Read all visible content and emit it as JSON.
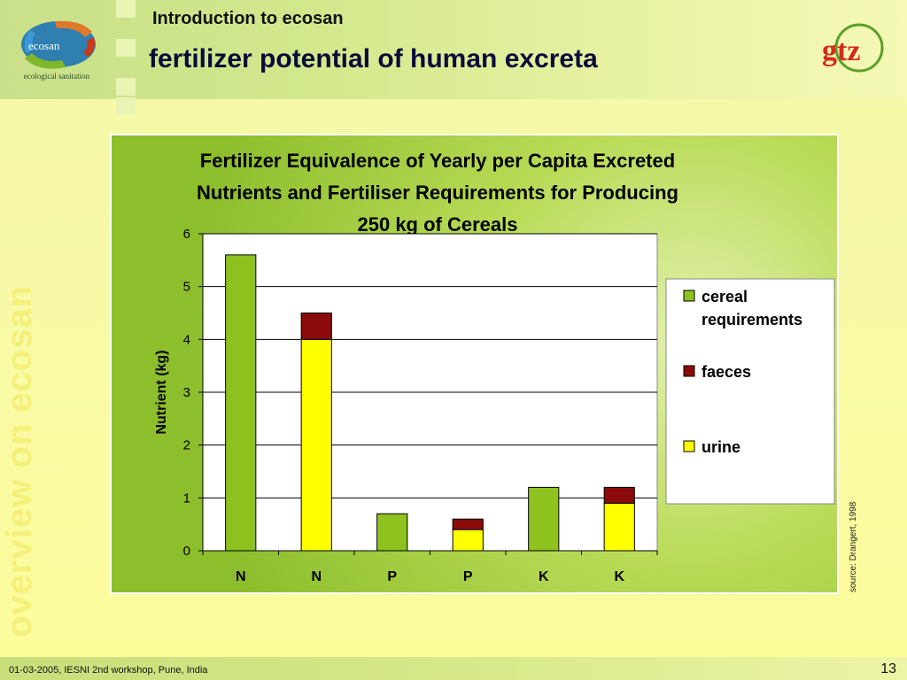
{
  "header": {
    "subtitle": "Introduction to ecosan",
    "title": "fertilizer potential of human excreta",
    "logo_word": "ecosan",
    "logo_caption": "ecological sanitation",
    "brand_logo": "gtz"
  },
  "sidebar": {
    "vertical_text": "overview on ecosan"
  },
  "source": "source: Drangert, 1998",
  "footer": {
    "text": "01-03-2005, IESNI 2nd workshop, Pune, India",
    "page": "13"
  },
  "colors": {
    "cereal": "#8dc21f",
    "faeces": "#8b0a0a",
    "urine": "#ffff00",
    "title_color": "#0a0a3a"
  },
  "chart_data": {
    "type": "bar",
    "stacked": true,
    "title_lines": [
      "Fertilizer Equivalence of Yearly per Capita Excreted",
      "Nutrients and Fertiliser Requirements for Producing",
      "250 kg of Cereals"
    ],
    "xlabel": "",
    "ylabel": "Nutrient (kg)",
    "ylim": [
      0,
      6
    ],
    "yticks": [
      "0",
      "1",
      "2",
      "3",
      "4",
      "5",
      "6"
    ],
    "grid": true,
    "legend_position": "right",
    "categories": [
      "N",
      "N",
      "P",
      "P",
      "K",
      "K"
    ],
    "series": [
      {
        "name": "cereal requirements",
        "color": "#8dc21f",
        "values": [
          5.6,
          0,
          0.7,
          0,
          1.2,
          0
        ]
      },
      {
        "name": "urine",
        "color": "#ffff00",
        "values": [
          0,
          4.0,
          0,
          0.4,
          0,
          0.9
        ]
      },
      {
        "name": "faeces",
        "color": "#8b0a0a",
        "values": [
          0,
          0.5,
          0,
          0.2,
          0,
          0.3
        ]
      }
    ],
    "legend": [
      {
        "name": "cereal requirements",
        "lines": [
          "cereal",
          "requirements"
        ],
        "color": "#8dc21f"
      },
      {
        "name": "faeces",
        "lines": [
          "faeces"
        ],
        "color": "#8b0a0a"
      },
      {
        "name": "urine",
        "lines": [
          "urine"
        ],
        "color": "#ffff00"
      }
    ]
  }
}
